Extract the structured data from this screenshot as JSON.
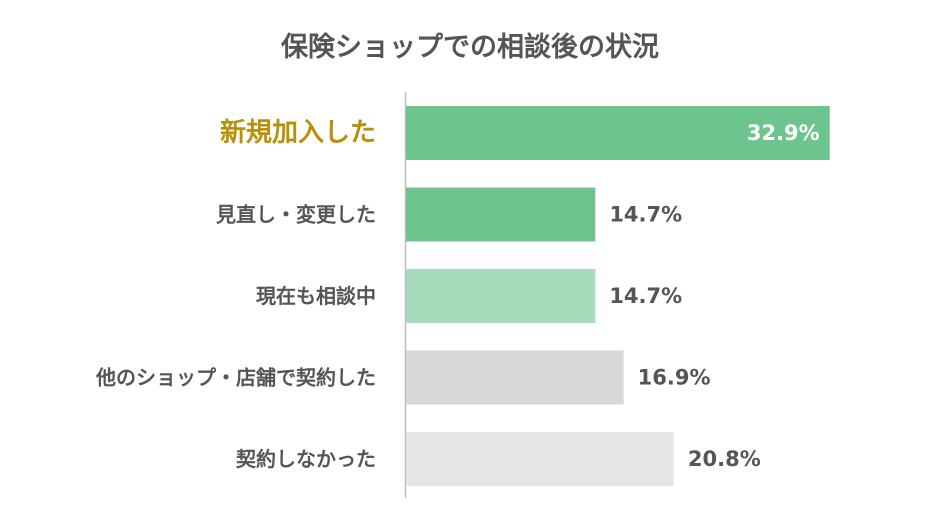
{
  "chart_data": {
    "type": "bar",
    "orientation": "horizontal",
    "title": "保険ショップでの相談後の状況",
    "xlim": [
      0,
      33
    ],
    "categories": [
      "新規加入した",
      "見直し・変更した",
      "現在も相談中",
      "他のショップ・店舗で契約した",
      "契約しなかった"
    ],
    "values": [
      32.9,
      14.7,
      14.7,
      16.9,
      20.8
    ],
    "value_labels": [
      "32.9%",
      "14.7%",
      "14.7%",
      "16.9%",
      "20.8%"
    ],
    "highlight_index": 0,
    "colors": [
      "#6ec48e",
      "#6ec48e",
      "#a8dbbc",
      "#d8d8d8",
      "#e6e6e6"
    ],
    "highlight_label_color": "#b8900a",
    "axis_color": "#bdbdbd",
    "grid": false,
    "legend": "none"
  }
}
